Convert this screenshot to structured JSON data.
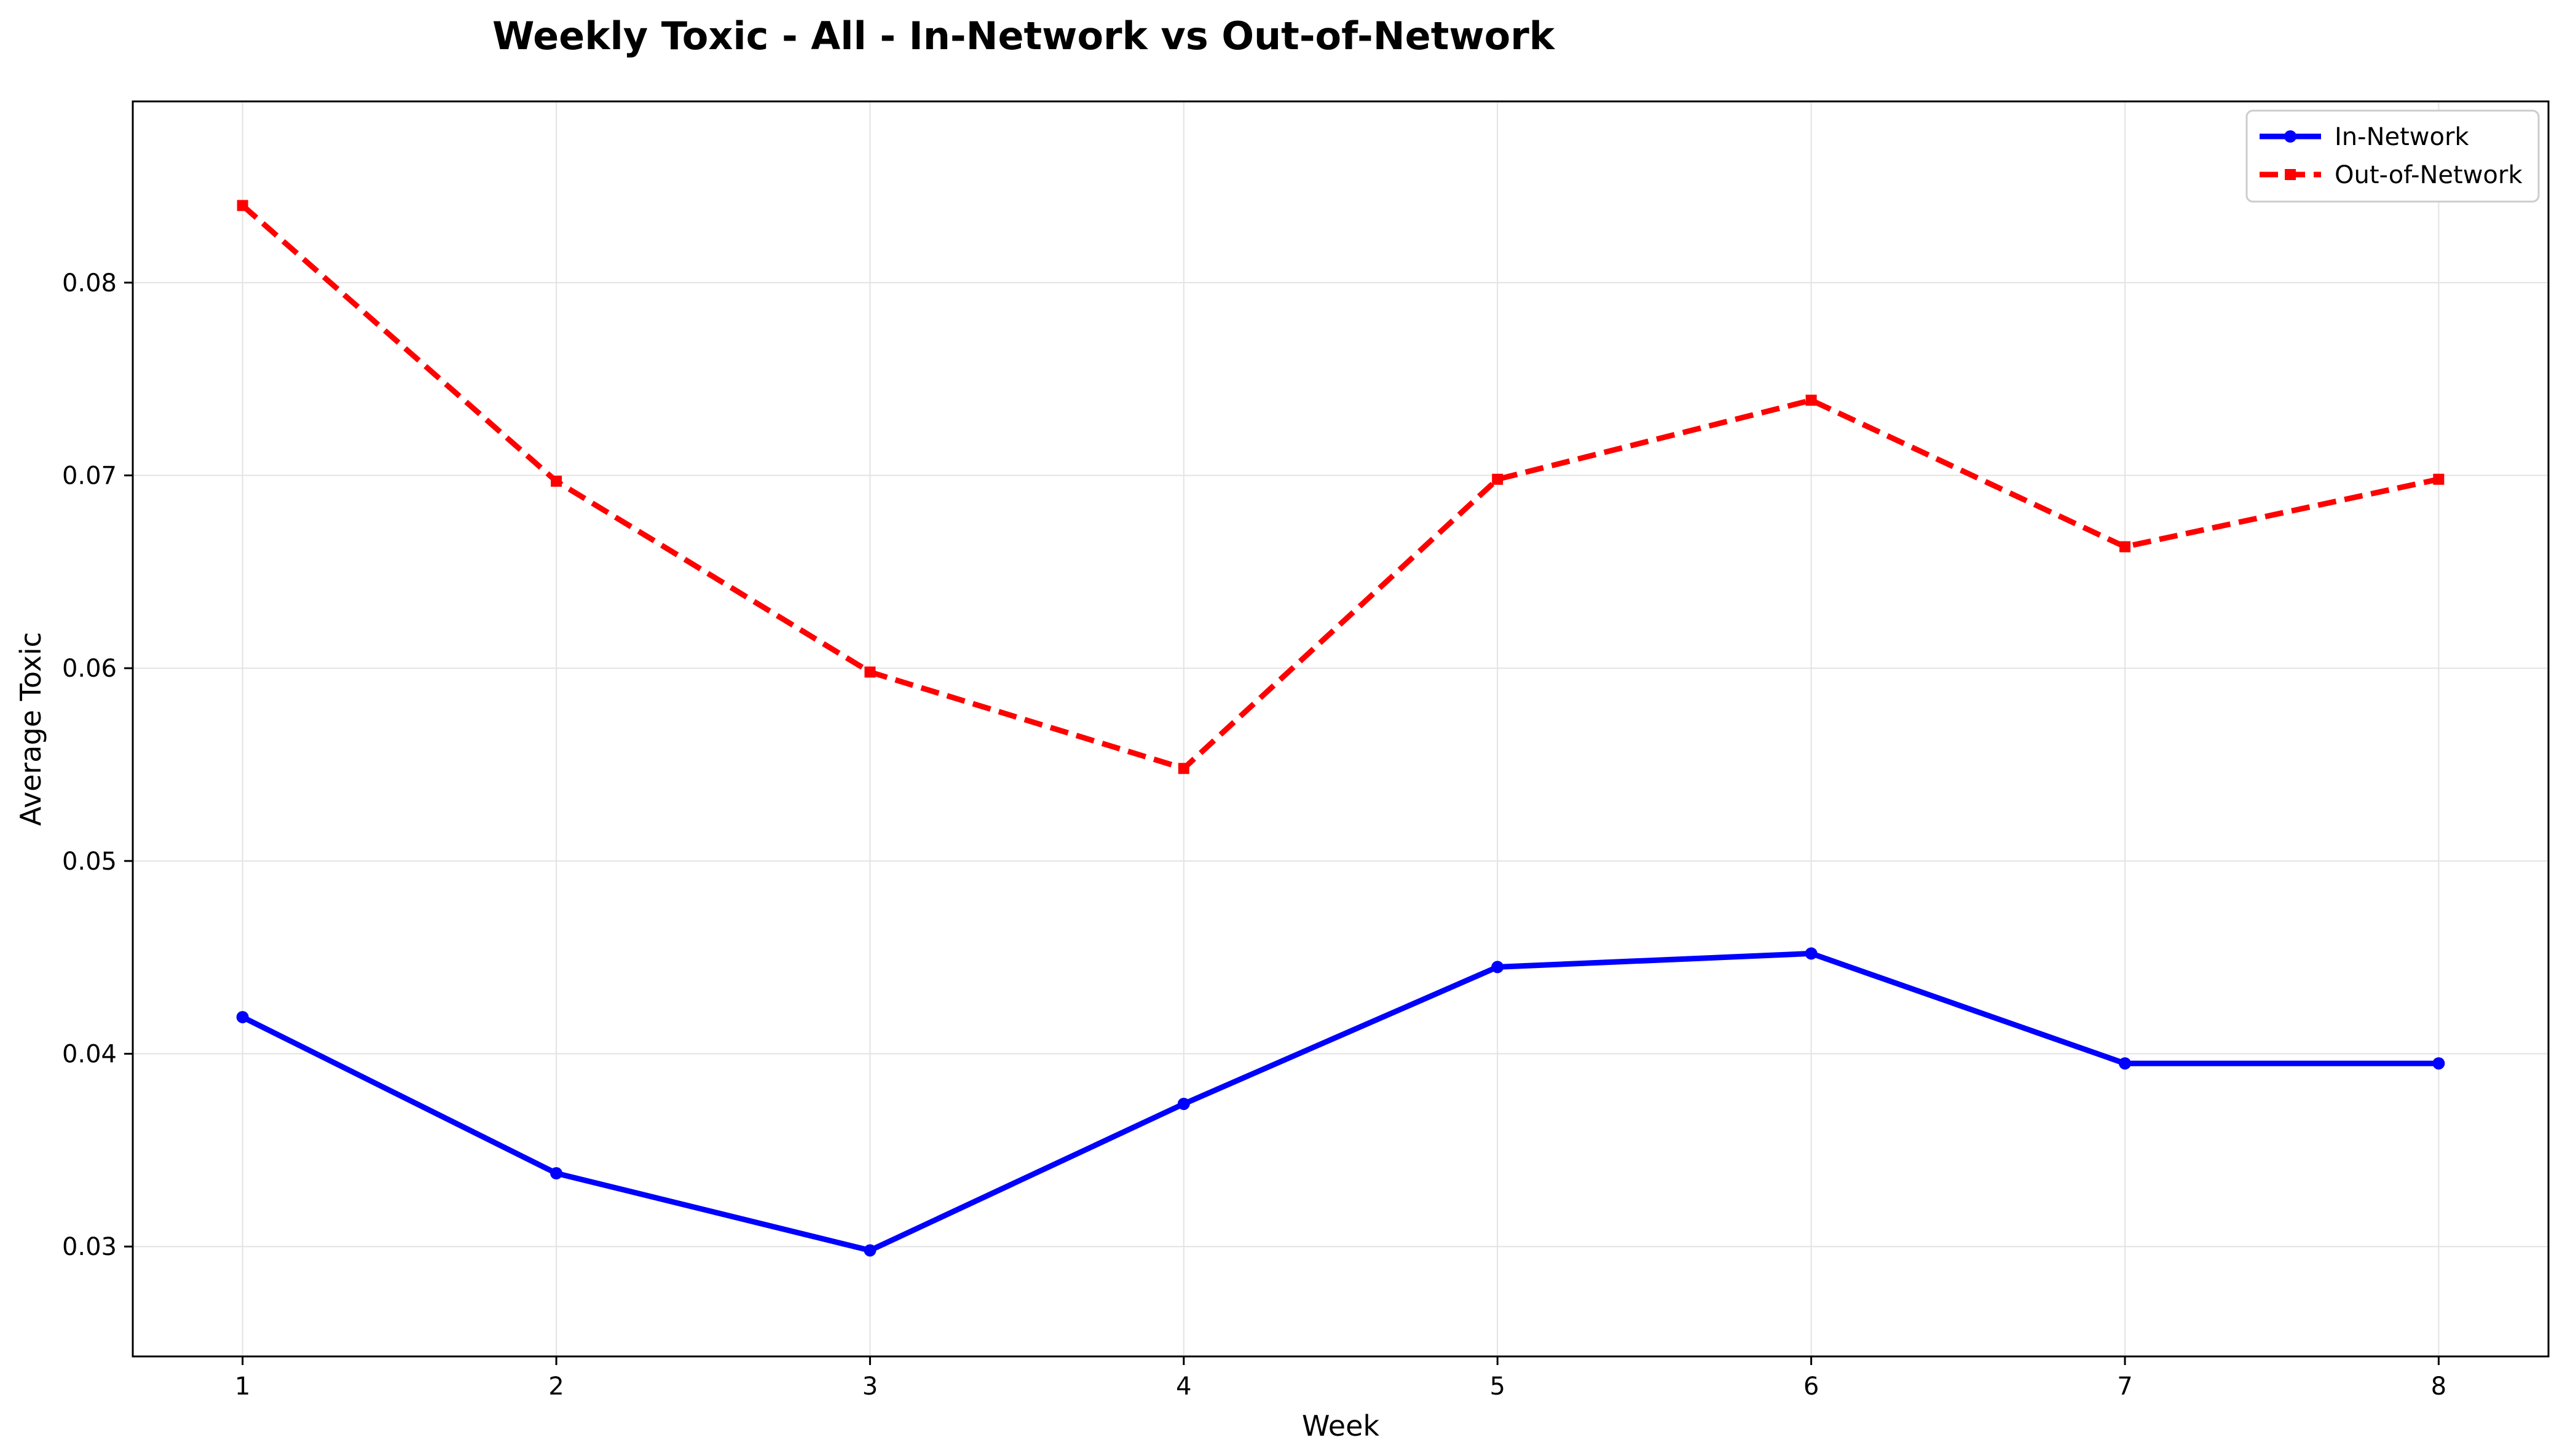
{
  "chart_data": {
    "type": "line",
    "title": "Weekly Toxic - All - In-Network vs Out-of-Network",
    "xlabel": "Week",
    "ylabel": "Average Toxic",
    "x": [
      1,
      2,
      3,
      4,
      5,
      6,
      7,
      8
    ],
    "x_tick_labels": [
      "1",
      "2",
      "3",
      "4",
      "5",
      "6",
      "7",
      "8"
    ],
    "y_tick_values": [
      0.03,
      0.04,
      0.05,
      0.06,
      0.07,
      0.08
    ],
    "y_tick_labels": [
      "0.03",
      "0.04",
      "0.05",
      "0.06",
      "0.07",
      "0.08"
    ],
    "xlim": [
      0.65,
      8.35
    ],
    "ylim": [
      0.0243,
      0.0894
    ],
    "grid": true,
    "legend_position": "top-right",
    "series": [
      {
        "name": "In-Network",
        "values": [
          0.0419,
          0.0338,
          0.0298,
          0.0374,
          0.0445,
          0.0452,
          0.0395,
          0.0395
        ],
        "color": "#0000ff",
        "line_style": "solid",
        "marker": "circle"
      },
      {
        "name": "Out-of-Network",
        "values": [
          0.084,
          0.0697,
          0.0598,
          0.0548,
          0.0698,
          0.0739,
          0.0663,
          0.0698
        ],
        "color": "#ff0000",
        "line_style": "dashed",
        "marker": "square"
      }
    ]
  }
}
